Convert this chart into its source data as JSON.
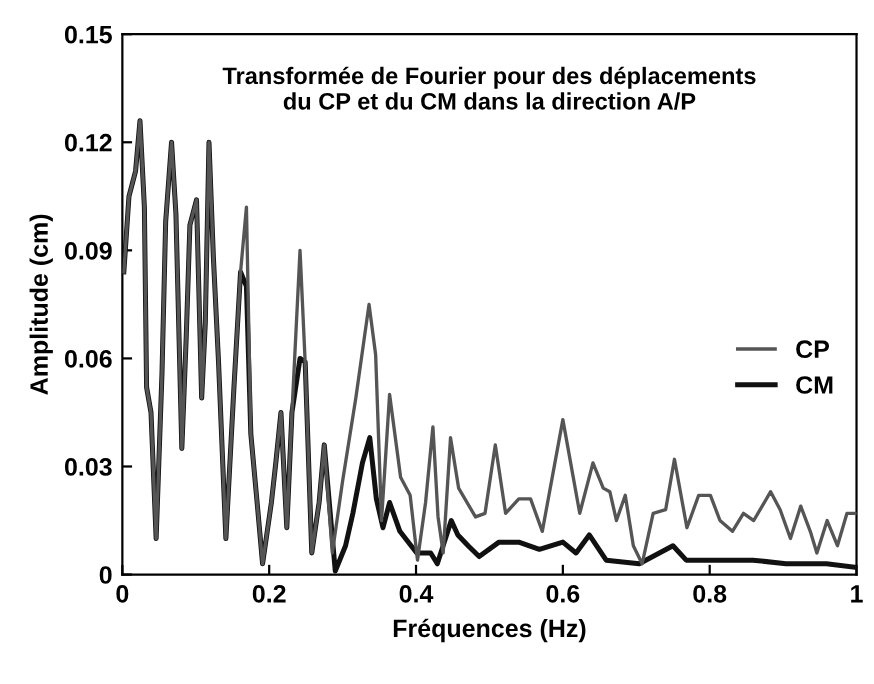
{
  "chart_data": {
    "type": "line",
    "title": "Transformée de Fourier pour des déplacements\ndu CP et du CM dans la direction A/P",
    "xlabel": "Fréquences (Hz)",
    "ylabel": "Amplitude (cm)",
    "xlim": [
      0,
      1
    ],
    "xticks": [
      0,
      0.2,
      0.4,
      0.6,
      0.8,
      1
    ],
    "ylim": [
      0,
      0.15
    ],
    "yticks": [
      0,
      0.03,
      0.06,
      0.09,
      0.12,
      0.15
    ],
    "grid": false,
    "legend": "right",
    "marker": "none",
    "line_style": "solid",
    "series": [
      {
        "name": "CP",
        "color": "#555555",
        "x": [
          0.002,
          0.009,
          0.018,
          0.024,
          0.03,
          0.033,
          0.039,
          0.046,
          0.054,
          0.059,
          0.067,
          0.073,
          0.081,
          0.087,
          0.092,
          0.101,
          0.108,
          0.113,
          0.118,
          0.124,
          0.131,
          0.141,
          0.152,
          0.161,
          0.169,
          0.175,
          0.184,
          0.191,
          0.203,
          0.209,
          0.216,
          0.224,
          0.231,
          0.242,
          0.249,
          0.258,
          0.268,
          0.275,
          0.286,
          0.3,
          0.318,
          0.336,
          0.345,
          0.353,
          0.364,
          0.379,
          0.392,
          0.402,
          0.413,
          0.423,
          0.43,
          0.437,
          0.447,
          0.458,
          0.481,
          0.494,
          0.508,
          0.522,
          0.54,
          0.556,
          0.572,
          0.6,
          0.623,
          0.641,
          0.655,
          0.664,
          0.673,
          0.685,
          0.696,
          0.708,
          0.723,
          0.74,
          0.752,
          0.769,
          0.785,
          0.801,
          0.814,
          0.831,
          0.846,
          0.86,
          0.883,
          0.896,
          0.91,
          0.924,
          0.937,
          0.946,
          0.96,
          0.974,
          0.987,
          1.0
        ],
        "values": [
          0.084,
          0.105,
          0.112,
          0.126,
          0.102,
          0.052,
          0.045,
          0.01,
          0.056,
          0.098,
          0.12,
          0.1,
          0.035,
          0.066,
          0.097,
          0.104,
          0.049,
          0.07,
          0.12,
          0.088,
          0.059,
          0.01,
          0.052,
          0.084,
          0.102,
          0.039,
          0.019,
          0.003,
          0.02,
          0.031,
          0.045,
          0.013,
          0.045,
          0.09,
          0.059,
          0.006,
          0.02,
          0.036,
          0.006,
          0.026,
          0.049,
          0.075,
          0.061,
          0.015,
          0.05,
          0.027,
          0.022,
          0.004,
          0.02,
          0.041,
          0.016,
          0.006,
          0.038,
          0.024,
          0.016,
          0.017,
          0.036,
          0.017,
          0.021,
          0.021,
          0.012,
          0.043,
          0.017,
          0.031,
          0.024,
          0.023,
          0.015,
          0.022,
          0.008,
          0.003,
          0.017,
          0.018,
          0.032,
          0.013,
          0.022,
          0.022,
          0.015,
          0.012,
          0.017,
          0.015,
          0.023,
          0.018,
          0.01,
          0.019,
          0.012,
          0.006,
          0.015,
          0.008,
          0.017,
          0.017
        ]
      },
      {
        "name": "CM",
        "color": "#111111",
        "x": [
          0.002,
          0.009,
          0.018,
          0.024,
          0.03,
          0.033,
          0.039,
          0.046,
          0.054,
          0.059,
          0.067,
          0.073,
          0.081,
          0.087,
          0.092,
          0.101,
          0.108,
          0.113,
          0.118,
          0.124,
          0.131,
          0.141,
          0.152,
          0.161,
          0.169,
          0.175,
          0.184,
          0.191,
          0.203,
          0.209,
          0.216,
          0.224,
          0.231,
          0.242,
          0.249,
          0.258,
          0.268,
          0.275,
          0.29,
          0.304,
          0.314,
          0.327,
          0.337,
          0.346,
          0.355,
          0.364,
          0.378,
          0.401,
          0.42,
          0.429,
          0.448,
          0.457,
          0.471,
          0.486,
          0.513,
          0.54,
          0.568,
          0.6,
          0.618,
          0.636,
          0.659,
          0.704,
          0.75,
          0.768,
          0.813,
          0.859,
          0.904,
          0.959,
          1.0
        ],
        "values": [
          0.084,
          0.105,
          0.112,
          0.126,
          0.102,
          0.052,
          0.045,
          0.01,
          0.056,
          0.098,
          0.12,
          0.1,
          0.035,
          0.066,
          0.097,
          0.104,
          0.049,
          0.07,
          0.12,
          0.088,
          0.059,
          0.01,
          0.052,
          0.084,
          0.08,
          0.039,
          0.019,
          0.003,
          0.02,
          0.031,
          0.045,
          0.013,
          0.045,
          0.06,
          0.059,
          0.006,
          0.02,
          0.036,
          0.001,
          0.008,
          0.017,
          0.031,
          0.038,
          0.021,
          0.013,
          0.02,
          0.012,
          0.006,
          0.006,
          0.003,
          0.015,
          0.011,
          0.008,
          0.005,
          0.009,
          0.009,
          0.007,
          0.009,
          0.006,
          0.011,
          0.004,
          0.003,
          0.008,
          0.004,
          0.004,
          0.004,
          0.003,
          0.003,
          0.002
        ]
      }
    ]
  }
}
